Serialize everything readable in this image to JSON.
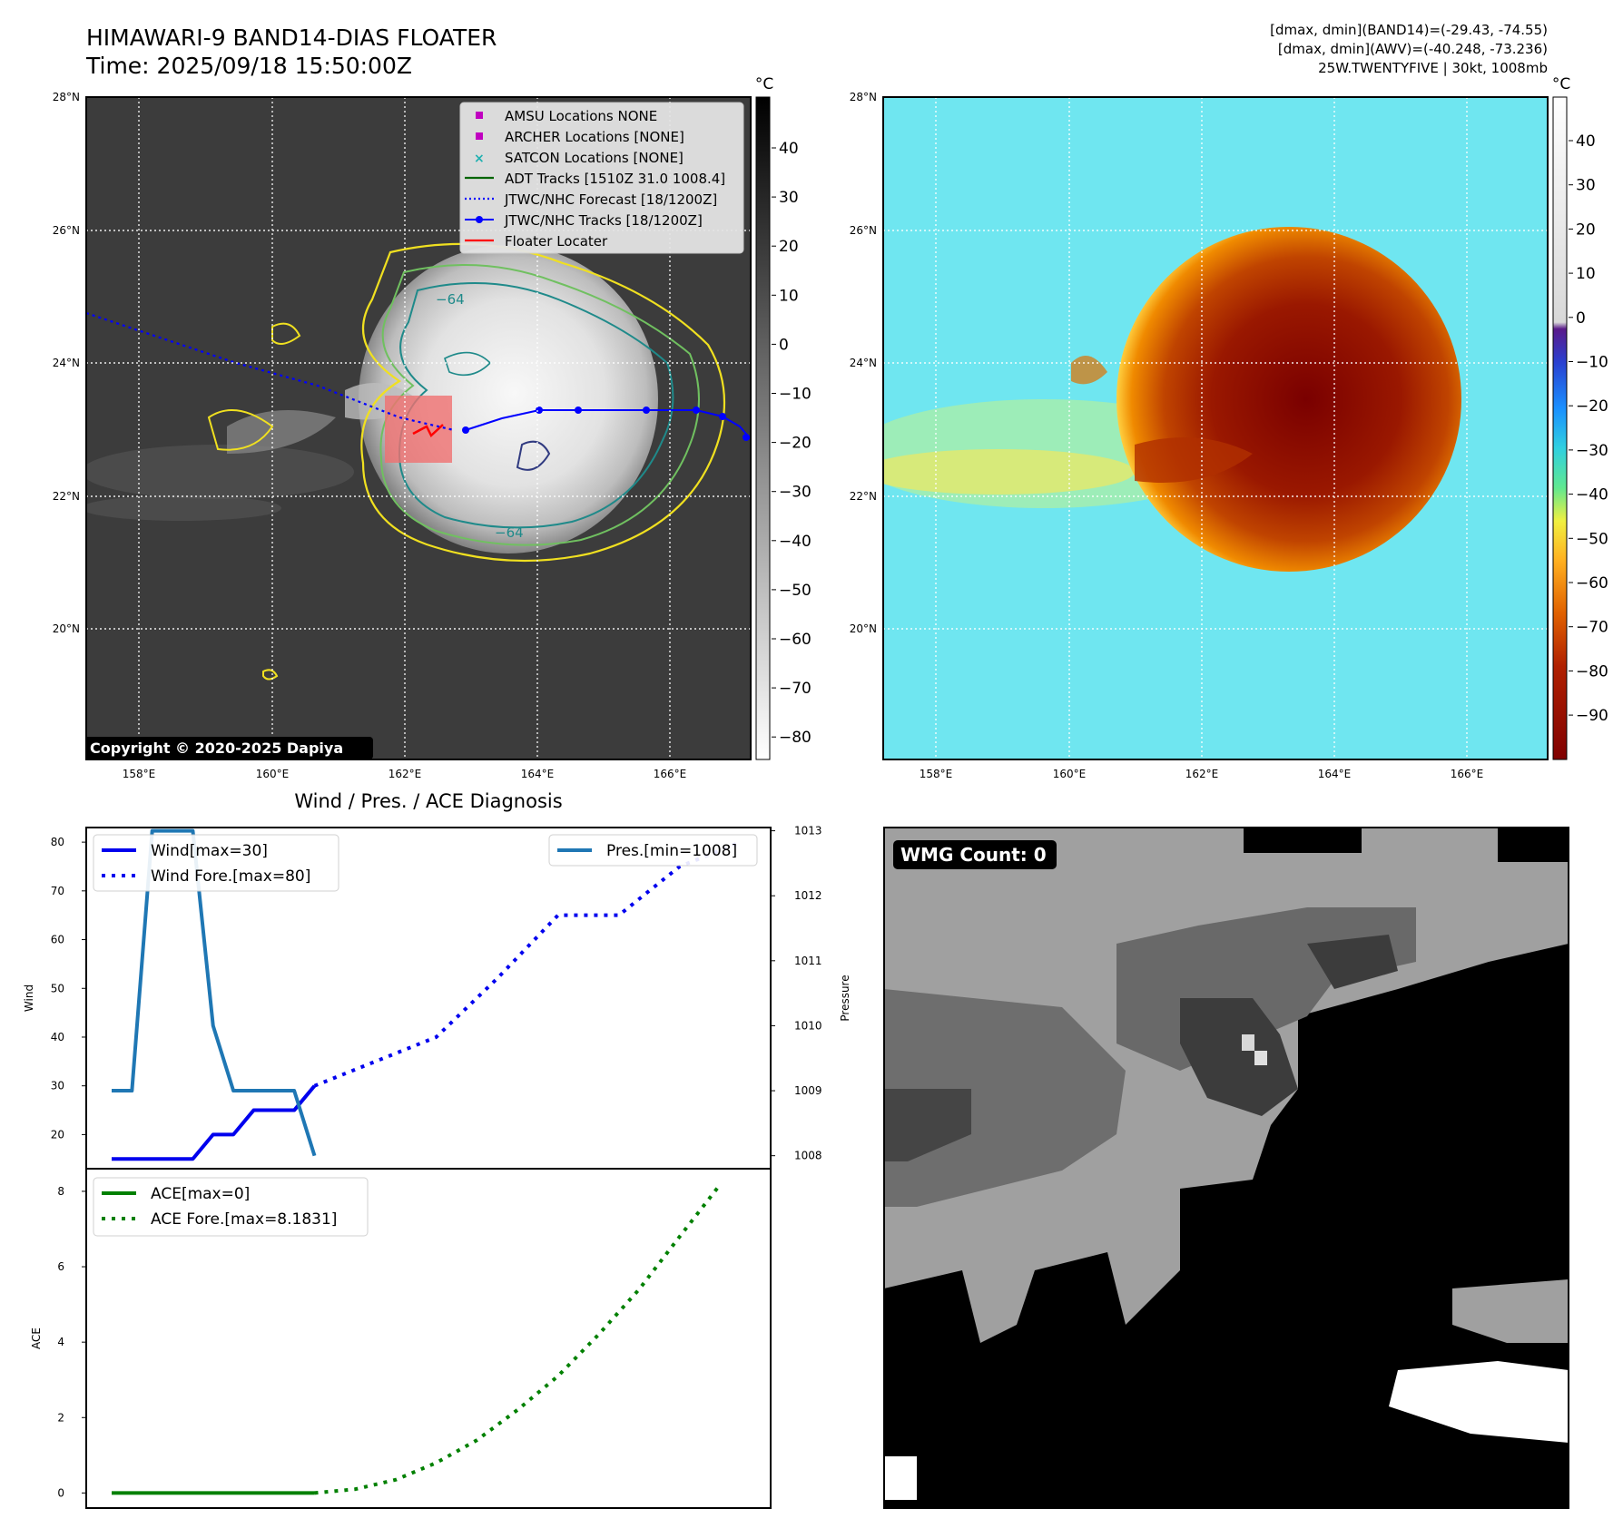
{
  "header": {
    "title_line1": "HIMAWARI-9 BAND14-DIAS FLOATER",
    "title_line2": "Time: 2025/09/18 15:50:00Z",
    "stats_band14": "[dmax, dmin](BAND14)=(-29.43, -74.55)",
    "stats_awv": "[dmax, dmin](AWV)=(-40.248, -73.236)",
    "storm_info": "25W.TWENTYFIVE | 30kt, 1008mb"
  },
  "map": {
    "lat_labels": [
      "28°N",
      "26°N",
      "24°N",
      "22°N",
      "20°N"
    ],
    "lon_labels": [
      "158°E",
      "160°E",
      "162°E",
      "164°E",
      "166°E"
    ],
    "contour_labels": [
      "−64",
      "−64"
    ],
    "copyright": "Copyright © 2020-2025 Dapiya",
    "legend": [
      {
        "label": "AMSU Locations NONE",
        "color": "#c000c0",
        "marker": "square"
      },
      {
        "label": "ARCHER Locations [NONE]",
        "color": "#c000c0",
        "marker": "square"
      },
      {
        "label": "SATCON Locations [NONE]",
        "color": "#20b0b0",
        "marker": "x"
      },
      {
        "label": "ADT Tracks [1510Z 31.0 1008.4]",
        "color": "#006400",
        "marker": "line"
      },
      {
        "label": "JTWC/NHC Forecast [18/1200Z]",
        "color": "#0000ff",
        "marker": "dotted"
      },
      {
        "label": "JTWC/NHC Tracks [18/1200Z]",
        "color": "#0000ff",
        "marker": "line-dot"
      },
      {
        "label": "Floater Locater",
        "color": "#ff0000",
        "marker": "line"
      }
    ]
  },
  "colorbar_gray": {
    "unit": "°C",
    "ticks": [
      "40",
      "30",
      "20",
      "10",
      "0",
      "−10",
      "−20",
      "−30",
      "−40",
      "−50",
      "−60",
      "−70",
      "−80"
    ]
  },
  "colorbar_color": {
    "unit": "°C",
    "ticks": [
      "40",
      "30",
      "20",
      "10",
      "0",
      "−10",
      "−20",
      "−30",
      "−40",
      "−50",
      "−60",
      "−70",
      "−80",
      "−90"
    ]
  },
  "wmg": {
    "label": "WMG Count: 0"
  },
  "chart_data": [
    {
      "type": "line",
      "title": "Wind / Pres. / ACE Diagnosis",
      "ylabel": "Wind",
      "ylabel_right": "Pressure",
      "ylim": [
        13,
        83
      ],
      "ylim_right": [
        1007.8,
        1013.05
      ],
      "yticks": [
        "20",
        "30",
        "40",
        "50",
        "60",
        "70",
        "80"
      ],
      "yticks_right": [
        "1008",
        "1009",
        "1010",
        "1011",
        "1012",
        "1013"
      ],
      "series": [
        {
          "name": "Wind[max=30]",
          "style": "solid",
          "color": "#0000ee",
          "x": [
            0,
            1,
            2,
            3,
            4,
            5,
            6,
            7,
            8,
            9,
            10
          ],
          "values": [
            15,
            15,
            15,
            15,
            15,
            20,
            20,
            25,
            25,
            25,
            30
          ]
        },
        {
          "name": "Wind Fore.[max=80]",
          "style": "dotted",
          "color": "#0000ee",
          "x": [
            10,
            13,
            16,
            19,
            22,
            25,
            28,
            31
          ],
          "values": [
            30,
            35,
            40,
            52,
            65,
            65,
            75,
            80
          ]
        },
        {
          "name": "Pres.[min=1008]",
          "style": "solid",
          "color": "#1f77b4",
          "axis": "right",
          "x": [
            0,
            1,
            2,
            3,
            4,
            5,
            6,
            7,
            8,
            9,
            10
          ],
          "values": [
            1009,
            1009,
            1013,
            1013,
            1013,
            1010,
            1009,
            1009,
            1009,
            1009,
            1008
          ]
        }
      ]
    },
    {
      "type": "line",
      "ylabel": "ACE",
      "ylim": [
        -0.4,
        8.6
      ],
      "yticks": [
        "0",
        "2",
        "4",
        "6",
        "8"
      ],
      "series": [
        {
          "name": "ACE[max=0]",
          "style": "solid",
          "color": "#008000",
          "x": [
            0,
            2,
            4,
            6,
            8,
            10
          ],
          "values": [
            0,
            0,
            0,
            0,
            0,
            0
          ]
        },
        {
          "name": "ACE Fore.[max=8.1831]",
          "style": "dotted",
          "color": "#008000",
          "x": [
            10,
            12,
            14,
            16,
            18,
            20,
            22,
            24,
            26,
            28,
            30
          ],
          "values": [
            0,
            0.1,
            0.35,
            0.8,
            1.4,
            2.2,
            3.1,
            4.2,
            5.4,
            6.8,
            8.1831
          ]
        }
      ]
    }
  ]
}
